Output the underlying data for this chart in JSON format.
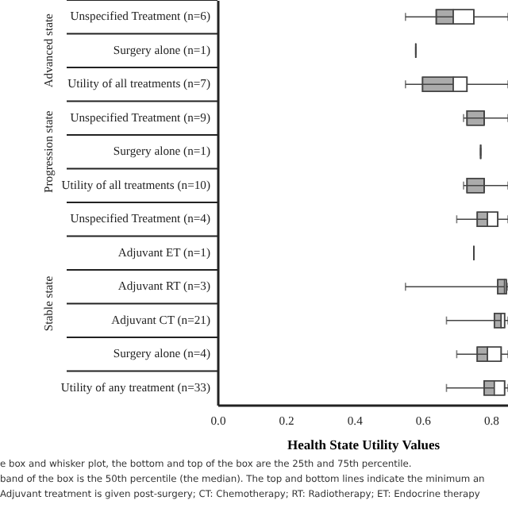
{
  "chart_data": {
    "type": "box",
    "orientation": "horizontal",
    "xlabel": "Health State Utility Values",
    "categories": [
      "Unspecified Treatment (n=6)",
      "Surgery alone (n=1)",
      "Utility of all treatments (n=7)",
      "Unspecified Treatment (n=9)",
      "Surgery alone (n=1)",
      "Utility of all treatments (n=10)",
      "Unspecified Treatment (n=4)",
      "Adjuvant ET (n=1)",
      "Adjuvant RT (n=3)",
      "Adjuvant CT (n=21)",
      "Surgery alone (n=4)",
      "Utility of any treatment (n=33)"
    ],
    "series": [
      {
        "color": "#444444",
        "boxes": [
          {
            "low": 0.55,
            "q1": 0.64,
            "median": 0.69,
            "q3": 0.75,
            "high": 0.85
          },
          {
            "low": 0.58,
            "q1": 0.58,
            "median": 0.58,
            "q3": 0.58,
            "high": 0.58
          },
          {
            "low": 0.55,
            "q1": 0.6,
            "median": 0.69,
            "q3": 0.73,
            "high": 0.85
          },
          {
            "low": 0.72,
            "q1": 0.73,
            "median": 0.78,
            "q3": 0.78,
            "high": 0.85
          },
          {
            "low": 0.77,
            "q1": 0.77,
            "median": 0.77,
            "q3": 0.77,
            "high": 0.77
          },
          {
            "low": 0.72,
            "q1": 0.73,
            "median": 0.78,
            "q3": 0.78,
            "high": 0.85
          },
          {
            "low": 0.7,
            "q1": 0.76,
            "median": 0.79,
            "q3": 0.82,
            "high": 0.85
          },
          {
            "low": 0.75,
            "q1": 0.75,
            "median": 0.75,
            "q3": 0.75,
            "high": 0.75
          },
          {
            "low": 0.55,
            "q1": 0.82,
            "median": 0.84,
            "q3": 0.845,
            "high": 0.85
          },
          {
            "low": 0.67,
            "q1": 0.81,
            "median": 0.83,
            "q3": 0.84,
            "high": 0.85
          },
          {
            "low": 0.7,
            "q1": 0.76,
            "median": 0.79,
            "q3": 0.83,
            "high": 0.85
          },
          {
            "low": 0.67,
            "q1": 0.78,
            "median": 0.81,
            "q3": 0.84,
            "high": 0.85
          }
        ]
      }
    ],
    "xlim": [
      0,
      0.85
    ],
    "xticks": [
      {
        "value": 0,
        "label": "0.0"
      },
      {
        "value": 0.2,
        "label": "0.2"
      },
      {
        "value": 0.4,
        "label": "0.4"
      },
      {
        "value": 0.6,
        "label": "0.6"
      },
      {
        "value": 0.8,
        "label": "0.8"
      }
    ],
    "grid": false,
    "annotations": [
      "Advanced state",
      "Progression state",
      "Stable state",
      "e box and whisker plot, the bottom and top of the box are the 25th and 75th percentile.",
      "band of the box is the 50th percentile (the median). The top and bottom lines indicate the minimum an",
      "Adjuvant treatment is given post-surgery; CT: Chemotherapy; RT: Radiotherapy; ET: Endocrine therapy"
    ]
  }
}
